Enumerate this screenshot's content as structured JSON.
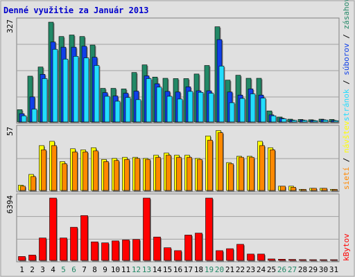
{
  "chart_data": {
    "type": "bar",
    "title": "Denné využitie za Január 2013",
    "categories": [
      "1",
      "2",
      "3",
      "4",
      "5",
      "6",
      "7",
      "8",
      "9",
      "10",
      "11",
      "12",
      "13",
      "14",
      "15",
      "16",
      "17",
      "18",
      "19",
      "20",
      "21",
      "22",
      "23",
      "24",
      "25",
      "26",
      "27",
      "28",
      "29",
      "30",
      "31"
    ],
    "weekend_days": [
      "5",
      "6",
      "12",
      "13",
      "19",
      "20",
      "26",
      "27"
    ],
    "colors": {
      "title": "#0000cc",
      "hits": "#228866",
      "files": "#1040e8",
      "pages": "#22ddff",
      "visits": "#ffff00",
      "sites": "#ff8800",
      "kbytes": "#ff0000",
      "weekend_label": "#228866",
      "background": "#e0e0e0"
    },
    "panels": [
      {
        "id": "top",
        "ymax_label": "327",
        "ylim": [
          0,
          327
        ],
        "series": [
          {
            "name": "zásahov",
            "values": [
              40,
              150,
              180,
              327,
              280,
              285,
              280,
              252,
              110,
              110,
              108,
              162,
              187,
              147,
              143,
              142,
              142,
              157,
              185,
              312,
              137,
              153,
              143,
              143,
              36,
              16,
              9,
              8,
              7,
              9,
              8
            ]
          },
          {
            "name": "súborov",
            "values": [
              27,
              82,
              156,
              262,
              245,
              245,
              248,
              212,
              96,
              85,
              94,
              101,
              151,
              125,
              100,
              98,
              115,
              102,
              102,
              270,
              98,
              88,
              108,
              88,
              23,
              12,
              6,
              6,
              5,
              7,
              5
            ]
          },
          {
            "name": "stránok",
            "values": [
              20,
              42,
              142,
              238,
              206,
              215,
              210,
              185,
              84,
              68,
              80,
              73,
              142,
              114,
              84,
              75,
              100,
              97,
              94,
              183,
              63,
              77,
              92,
              78,
              20,
              10,
              5,
              5,
              4,
              6,
              4
            ]
          }
        ]
      },
      {
        "id": "middle",
        "ymax_label": "57",
        "ylim": [
          0,
          57
        ],
        "series": [
          {
            "name": "návštev",
            "values": [
              5,
              15,
              42,
              46,
              27,
              39,
              38,
              40,
              29,
              30,
              31,
              31,
              30,
              33,
              35,
              33,
              33,
              30,
              51,
              56,
              26,
              32,
              32,
              46,
              40,
              4,
              4,
              1,
              2,
              2,
              1
            ]
          },
          {
            "name": "sietí",
            "values": [
              4,
              13,
              38,
              42,
              25,
              36,
              36,
              37,
              27,
              28,
              29,
              30,
              29,
              31,
              33,
              31,
              31,
              29,
              47,
              54,
              25,
              31,
              31,
              42,
              38,
              4,
              3,
              1,
              2,
              2,
              1
            ]
          }
        ]
      },
      {
        "id": "bottom",
        "ymax_label": "6394",
        "ylim": [
          0,
          6394
        ],
        "series": [
          {
            "name": "kBytov",
            "values": [
              400,
              550,
              2300,
              6394,
              2300,
              3400,
              4600,
              1900,
              1800,
              2000,
              2100,
              2150,
              6394,
              2400,
              1300,
              1000,
              2600,
              2800,
              6394,
              1000,
              1200,
              1650,
              650,
              650,
              150,
              120,
              100,
              80,
              60,
              50,
              50
            ]
          }
        ]
      }
    ]
  }
}
